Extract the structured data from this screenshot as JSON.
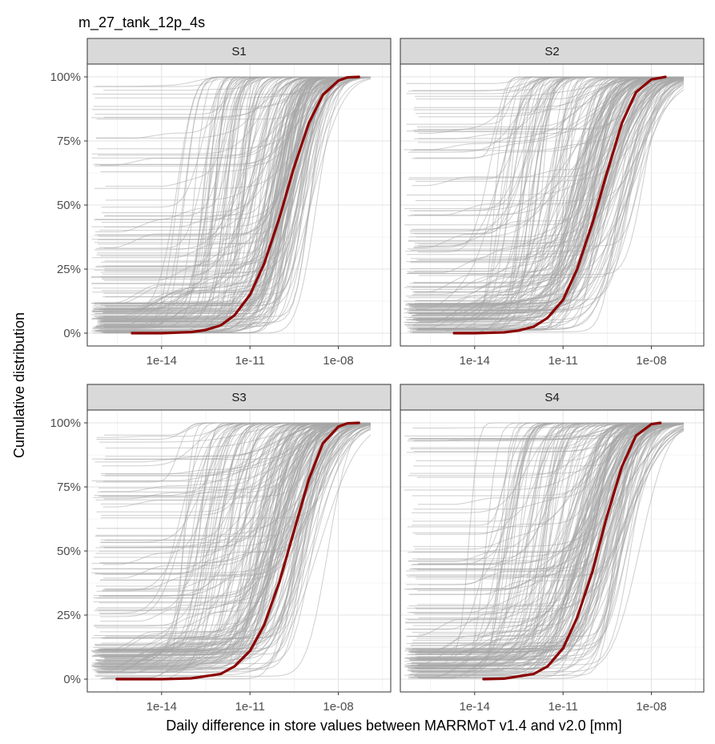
{
  "chart_data": {
    "type": "line",
    "title": "m_27_tank_12p_4s",
    "xlabel": "Daily difference in store values between MARRMoT v1.4 and v2.0 [mm]",
    "ylabel": "Cumulative distribution",
    "x_scale": "log10",
    "x_ticks": [
      "1e-14",
      "1e-11",
      "1e-08"
    ],
    "y_ticks": [
      "0%",
      "25%",
      "50%",
      "75%",
      "100%"
    ],
    "xlim": [
      3e-17,
      6e-07
    ],
    "ylim": [
      0,
      1
    ],
    "grid": true,
    "background_series_color": "#a6a6a6",
    "highlight_color": "#8b0000",
    "panels": [
      {
        "label": "S1",
        "highlight_series": {
          "x": [
            1e-15,
            1e-14,
            1e-13,
            3e-13,
            1e-12,
            3e-12,
            1e-11,
            3e-11,
            1e-10,
            3e-10,
            1e-09,
            3e-09,
            1e-08,
            2e-08,
            5e-08
          ],
          "y": [
            0.0,
            0.0,
            0.004,
            0.012,
            0.03,
            0.07,
            0.15,
            0.27,
            0.45,
            0.64,
            0.82,
            0.93,
            0.985,
            0.998,
            1.0
          ]
        }
      },
      {
        "label": "S2",
        "highlight_series": {
          "x": [
            2e-15,
            1e-14,
            1e-13,
            3e-13,
            1e-12,
            3e-12,
            1e-11,
            3e-11,
            1e-10,
            3e-10,
            1e-09,
            3e-09,
            1e-08,
            3e-08
          ],
          "y": [
            0.0,
            0.0,
            0.003,
            0.01,
            0.025,
            0.06,
            0.13,
            0.25,
            0.43,
            0.62,
            0.82,
            0.94,
            0.99,
            1.0
          ]
        }
      },
      {
        "label": "S3",
        "highlight_series": {
          "x": [
            3e-16,
            1e-15,
            1e-14,
            1e-13,
            1e-12,
            3e-12,
            1e-11,
            3e-11,
            1e-10,
            3e-10,
            1e-09,
            3e-09,
            1e-08,
            2e-08,
            5e-08
          ],
          "y": [
            0.0,
            0.0,
            0.0,
            0.003,
            0.02,
            0.05,
            0.11,
            0.21,
            0.38,
            0.57,
            0.78,
            0.92,
            0.985,
            0.998,
            1.0
          ]
        }
      },
      {
        "label": "S4",
        "highlight_series": {
          "x": [
            2e-14,
            1e-13,
            1e-12,
            3e-12,
            1e-11,
            3e-11,
            1e-10,
            3e-10,
            1e-09,
            3e-09,
            1e-08,
            2e-08
          ],
          "y": [
            0.0,
            0.002,
            0.02,
            0.05,
            0.12,
            0.24,
            0.42,
            0.63,
            0.83,
            0.95,
            0.995,
            1.0
          ]
        }
      }
    ]
  }
}
